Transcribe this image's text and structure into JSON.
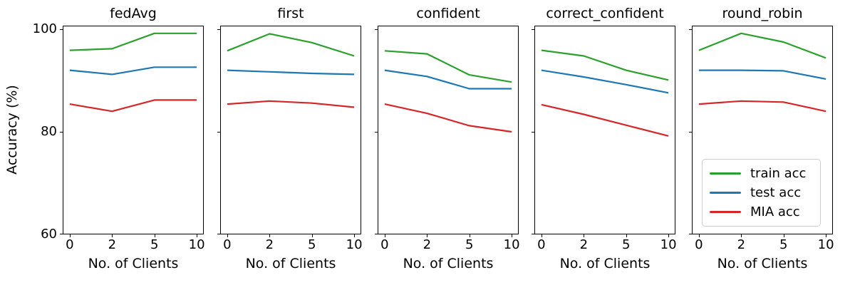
{
  "figure": {
    "ylabel": "Accuracy (%)",
    "xlabel": "No. of Clients",
    "ytick_labels": [
      "100",
      "80",
      "60"
    ],
    "ytick_values": [
      100,
      80,
      60
    ],
    "xtick_labels": [
      "0",
      "2",
      "5",
      "10"
    ],
    "ylim": [
      60,
      100.7
    ],
    "x_scale": "categorical-even-spacing",
    "grid": false,
    "background": "#ffffff",
    "text_color": "#000000",
    "spine_color": "#000000"
  },
  "legend": {
    "location": "lower-right-of-last-subplot",
    "entries": [
      {
        "label": "train acc",
        "color": "#2ca02c"
      },
      {
        "label": "test acc",
        "color": "#1f77b4"
      },
      {
        "label": "MIA acc",
        "color": "#d62728"
      }
    ]
  },
  "chart_data": [
    {
      "type": "line",
      "title": "fedAvg",
      "x": [
        0,
        2,
        5,
        10
      ],
      "xlabel": "No. of Clients",
      "ylabel": "Accuracy (%)",
      "ylim": [
        60,
        100.7
      ],
      "series": [
        {
          "name": "train acc",
          "color": "#2ca02c",
          "values": [
            95.9,
            96.2,
            99.2,
            99.2
          ]
        },
        {
          "name": "test acc",
          "color": "#1f77b4",
          "values": [
            92.0,
            91.2,
            92.6,
            92.6
          ]
        },
        {
          "name": "MIA acc",
          "color": "#d62728",
          "values": [
            85.4,
            84.0,
            86.2,
            86.2
          ]
        }
      ]
    },
    {
      "type": "line",
      "title": "first",
      "x": [
        0,
        2,
        5,
        10
      ],
      "xlabel": "No. of Clients",
      "ylabel": "Accuracy (%)",
      "ylim": [
        60,
        100.7
      ],
      "series": [
        {
          "name": "train acc",
          "color": "#2ca02c",
          "values": [
            95.8,
            99.1,
            97.4,
            94.8
          ]
        },
        {
          "name": "test acc",
          "color": "#1f77b4",
          "values": [
            92.0,
            91.7,
            91.4,
            91.2
          ]
        },
        {
          "name": "MIA acc",
          "color": "#d62728",
          "values": [
            85.4,
            86.0,
            85.6,
            84.8
          ]
        }
      ]
    },
    {
      "type": "line",
      "title": "confident",
      "x": [
        0,
        2,
        5,
        10
      ],
      "xlabel": "No. of Clients",
      "ylabel": "Accuracy (%)",
      "ylim": [
        60,
        100.7
      ],
      "series": [
        {
          "name": "train acc",
          "color": "#2ca02c",
          "values": [
            95.8,
            95.2,
            91.1,
            89.7
          ]
        },
        {
          "name": "test acc",
          "color": "#1f77b4",
          "values": [
            92.0,
            90.8,
            88.4,
            88.4
          ]
        },
        {
          "name": "MIA acc",
          "color": "#d62728",
          "values": [
            85.4,
            83.6,
            81.2,
            80.0
          ]
        }
      ]
    },
    {
      "type": "line",
      "title": "correct_confident",
      "x": [
        0,
        2,
        5,
        10
      ],
      "xlabel": "No. of Clients",
      "ylabel": "Accuracy (%)",
      "ylim": [
        60,
        100.7
      ],
      "series": [
        {
          "name": "train acc",
          "color": "#2ca02c",
          "values": [
            95.9,
            94.8,
            92.0,
            90.1
          ]
        },
        {
          "name": "test acc",
          "color": "#1f77b4",
          "values": [
            92.0,
            90.7,
            89.2,
            87.6
          ]
        },
        {
          "name": "MIA acc",
          "color": "#d62728",
          "values": [
            85.3,
            83.4,
            81.3,
            79.2
          ]
        }
      ]
    },
    {
      "type": "line",
      "title": "round_robin",
      "x": [
        0,
        2,
        5,
        10
      ],
      "xlabel": "No. of Clients",
      "ylabel": "Accuracy (%)",
      "ylim": [
        60,
        100.7
      ],
      "series": [
        {
          "name": "train acc",
          "color": "#2ca02c",
          "values": [
            95.9,
            99.2,
            97.5,
            94.4
          ]
        },
        {
          "name": "test acc",
          "color": "#1f77b4",
          "values": [
            92.0,
            92.0,
            91.9,
            90.3
          ]
        },
        {
          "name": "MIA acc",
          "color": "#d62728",
          "values": [
            85.4,
            86.0,
            85.8,
            84.0
          ]
        }
      ]
    }
  ]
}
